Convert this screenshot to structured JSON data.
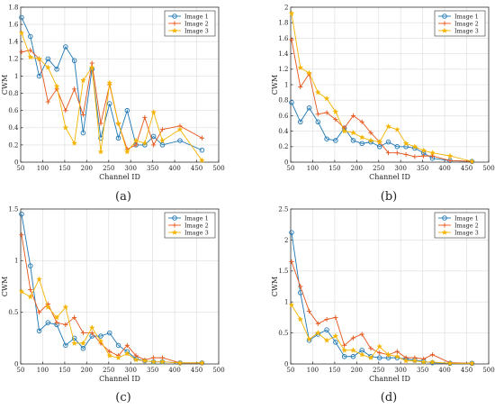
{
  "figure": {
    "colors": {
      "image1": "#1f77b4",
      "image2": "#e6551a",
      "image3": "#f5b400"
    }
  },
  "chart_data": [
    {
      "panel_label": "(a)",
      "type": "line",
      "xlabel": "Channel ID",
      "ylabel": "CWM",
      "xlim": [
        50,
        500
      ],
      "ylim": [
        0,
        1.8
      ],
      "xticks": [
        "50",
        "100",
        "150",
        "200",
        "250",
        "300",
        "350",
        "400",
        "450",
        "500"
      ],
      "yticks": [
        "0",
        "0.2",
        "0.4",
        "0.6",
        "0.8",
        "1",
        "1.2",
        "1.4",
        "1.6",
        "1.8"
      ],
      "legend": [
        "Image 1",
        "Image 2",
        "Image 3"
      ],
      "legend_position": "top-right",
      "grid": true,
      "series": [
        {
          "name": "Image 1",
          "marker": "circle",
          "x": [
            52,
            72,
            92,
            112,
            132,
            152,
            172,
            192,
            212,
            232,
            252,
            272,
            292,
            312,
            332,
            352,
            372,
            412,
            462
          ],
          "y": [
            1.68,
            1.46,
            1.0,
            1.2,
            1.08,
            1.34,
            1.18,
            0.34,
            1.08,
            0.28,
            0.68,
            0.28,
            0.6,
            0.2,
            0.2,
            0.3,
            0.2,
            0.25,
            0.14
          ]
        },
        {
          "name": "Image 2",
          "marker": "plus",
          "x": [
            52,
            72,
            92,
            112,
            132,
            152,
            172,
            192,
            212,
            232,
            252,
            272,
            292,
            312,
            332,
            352,
            372,
            412,
            462
          ],
          "y": [
            1.28,
            1.3,
            1.2,
            0.7,
            0.85,
            0.6,
            0.85,
            0.55,
            1.15,
            0.45,
            0.9,
            0.45,
            0.15,
            0.2,
            0.52,
            0.2,
            0.38,
            0.42,
            0.28
          ]
        },
        {
          "name": "Image 3",
          "marker": "star",
          "x": [
            52,
            72,
            92,
            112,
            132,
            152,
            172,
            192,
            212,
            232,
            252,
            272,
            292,
            312,
            332,
            352,
            372,
            412,
            462
          ],
          "y": [
            1.5,
            1.22,
            1.2,
            1.1,
            0.88,
            0.4,
            0.22,
            0.95,
            1.1,
            0.12,
            0.92,
            0.45,
            0.12,
            0.25,
            0.22,
            0.58,
            0.25,
            0.38,
            0.02
          ]
        }
      ]
    },
    {
      "panel_label": "(b)",
      "type": "line",
      "xlabel": "Channel ID",
      "ylabel": "CWM",
      "xlim": [
        50,
        500
      ],
      "ylim": [
        0,
        2
      ],
      "xticks": [
        "50",
        "100",
        "150",
        "200",
        "250",
        "300",
        "350",
        "400",
        "450",
        "500"
      ],
      "yticks": [
        "0",
        "0.2",
        "0.4",
        "0.6",
        "0.8",
        "1",
        "1.2",
        "1.4",
        "1.6",
        "1.8",
        "2"
      ],
      "legend": [
        "Image 1",
        "Image 2",
        "Image 3"
      ],
      "legend_position": "top-right",
      "grid": true,
      "series": [
        {
          "name": "Image 1",
          "marker": "circle",
          "x": [
            52,
            72,
            92,
            112,
            132,
            152,
            172,
            192,
            212,
            232,
            252,
            272,
            292,
            312,
            332,
            352,
            372,
            412,
            462
          ],
          "y": [
            0.77,
            0.52,
            0.7,
            0.52,
            0.3,
            0.28,
            0.44,
            0.28,
            0.24,
            0.26,
            0.2,
            0.26,
            0.2,
            0.2,
            0.18,
            0.12,
            0.05,
            0.02,
            0.01
          ]
        },
        {
          "name": "Image 2",
          "marker": "plus",
          "x": [
            52,
            72,
            92,
            112,
            132,
            152,
            172,
            192,
            212,
            232,
            252,
            272,
            292,
            312,
            332,
            352,
            372,
            412,
            462
          ],
          "y": [
            1.58,
            0.97,
            1.14,
            0.62,
            0.64,
            0.55,
            0.44,
            0.6,
            0.52,
            0.38,
            0.26,
            0.12,
            0.12,
            0.1,
            0.07,
            0.08,
            0.08,
            0.02,
            0.01
          ]
        },
        {
          "name": "Image 3",
          "marker": "star",
          "x": [
            52,
            72,
            92,
            112,
            132,
            152,
            172,
            192,
            212,
            232,
            252,
            272,
            292,
            312,
            332,
            352,
            372,
            412,
            462
          ],
          "y": [
            1.92,
            1.22,
            1.15,
            0.9,
            0.82,
            0.65,
            0.4,
            0.38,
            0.32,
            0.28,
            0.26,
            0.46,
            0.42,
            0.24,
            0.2,
            0.15,
            0.12,
            0.08,
            0.01
          ]
        }
      ]
    },
    {
      "panel_label": "(c)",
      "type": "line",
      "xlabel": "Channel ID",
      "ylabel": "CWM",
      "xlim": [
        50,
        500
      ],
      "ylim": [
        0,
        1.5
      ],
      "xticks": [
        "50",
        "100",
        "150",
        "200",
        "250",
        "300",
        "350",
        "400",
        "450",
        "500"
      ],
      "yticks": [
        "0",
        "0.5",
        "1",
        "1.5"
      ],
      "legend": [
        "Image 1",
        "Image 2",
        "Image 3"
      ],
      "legend_position": "top-right",
      "grid": true,
      "series": [
        {
          "name": "Image 1",
          "marker": "circle",
          "x": [
            52,
            72,
            92,
            112,
            132,
            152,
            172,
            192,
            212,
            232,
            252,
            272,
            292,
            312,
            332,
            352,
            372,
            412,
            462
          ],
          "y": [
            1.45,
            0.95,
            0.32,
            0.4,
            0.38,
            0.18,
            0.25,
            0.15,
            0.27,
            0.27,
            0.3,
            0.18,
            0.12,
            0.05,
            0.03,
            0.02,
            0.02,
            0.01,
            0.01
          ]
        },
        {
          "name": "Image 2",
          "marker": "plus",
          "x": [
            52,
            72,
            92,
            112,
            132,
            152,
            172,
            192,
            212,
            232,
            252,
            272,
            292,
            312,
            332,
            352,
            372,
            412,
            462
          ],
          "y": [
            1.25,
            0.72,
            0.5,
            0.58,
            0.4,
            0.38,
            0.45,
            0.3,
            0.3,
            0.2,
            0.12,
            0.08,
            0.18,
            0.08,
            0.04,
            0.06,
            0.06,
            0.01,
            0.01
          ]
        },
        {
          "name": "Image 3",
          "marker": "star",
          "x": [
            52,
            72,
            92,
            112,
            132,
            152,
            172,
            192,
            212,
            232,
            252,
            272,
            292,
            312,
            332,
            352,
            372,
            412,
            462
          ],
          "y": [
            0.7,
            0.65,
            0.82,
            0.55,
            0.45,
            0.55,
            0.2,
            0.2,
            0.35,
            0.22,
            0.08,
            0.06,
            0.1,
            0.04,
            0.03,
            0.02,
            0.02,
            0.01,
            0.01
          ]
        }
      ]
    },
    {
      "panel_label": "(d)",
      "type": "line",
      "xlabel": "Channel ID",
      "ylabel": "CWM",
      "xlim": [
        50,
        500
      ],
      "ylim": [
        0,
        2.5
      ],
      "xticks": [
        "50",
        "100",
        "150",
        "200",
        "250",
        "300",
        "350",
        "400",
        "450",
        "500"
      ],
      "yticks": [
        "0",
        "0.5",
        "1",
        "1.5",
        "2",
        "2.5"
      ],
      "legend": [
        "Image 1",
        "Image 2",
        "Image 3"
      ],
      "legend_position": "top-right",
      "grid": true,
      "series": [
        {
          "name": "Image 1",
          "marker": "circle",
          "x": [
            52,
            72,
            92,
            112,
            132,
            152,
            172,
            192,
            212,
            232,
            252,
            272,
            292,
            312,
            332,
            352,
            372,
            412,
            462
          ],
          "y": [
            2.12,
            1.15,
            0.38,
            0.48,
            0.55,
            0.35,
            0.12,
            0.12,
            0.22,
            0.12,
            0.1,
            0.1,
            0.1,
            0.08,
            0.06,
            0.04,
            0.02,
            0.01,
            0.01
          ]
        },
        {
          "name": "Image 2",
          "marker": "plus",
          "x": [
            52,
            72,
            92,
            112,
            132,
            152,
            172,
            192,
            212,
            232,
            252,
            272,
            292,
            312,
            332,
            352,
            372,
            412,
            462
          ],
          "y": [
            1.65,
            1.25,
            0.85,
            0.65,
            0.72,
            0.75,
            0.3,
            0.42,
            0.48,
            0.25,
            0.18,
            0.15,
            0.2,
            0.1,
            0.1,
            0.08,
            0.15,
            0.02,
            0.01
          ]
        },
        {
          "name": "Image 3",
          "marker": "star",
          "x": [
            52,
            72,
            92,
            112,
            132,
            152,
            172,
            192,
            212,
            232,
            252,
            272,
            292,
            312,
            332,
            352,
            372,
            412,
            462
          ],
          "y": [
            0.95,
            0.72,
            0.4,
            0.5,
            0.38,
            0.45,
            0.22,
            0.22,
            0.15,
            0.1,
            0.28,
            0.15,
            0.12,
            0.05,
            0.05,
            0.03,
            0.03,
            0.01,
            0.01
          ]
        }
      ]
    }
  ]
}
